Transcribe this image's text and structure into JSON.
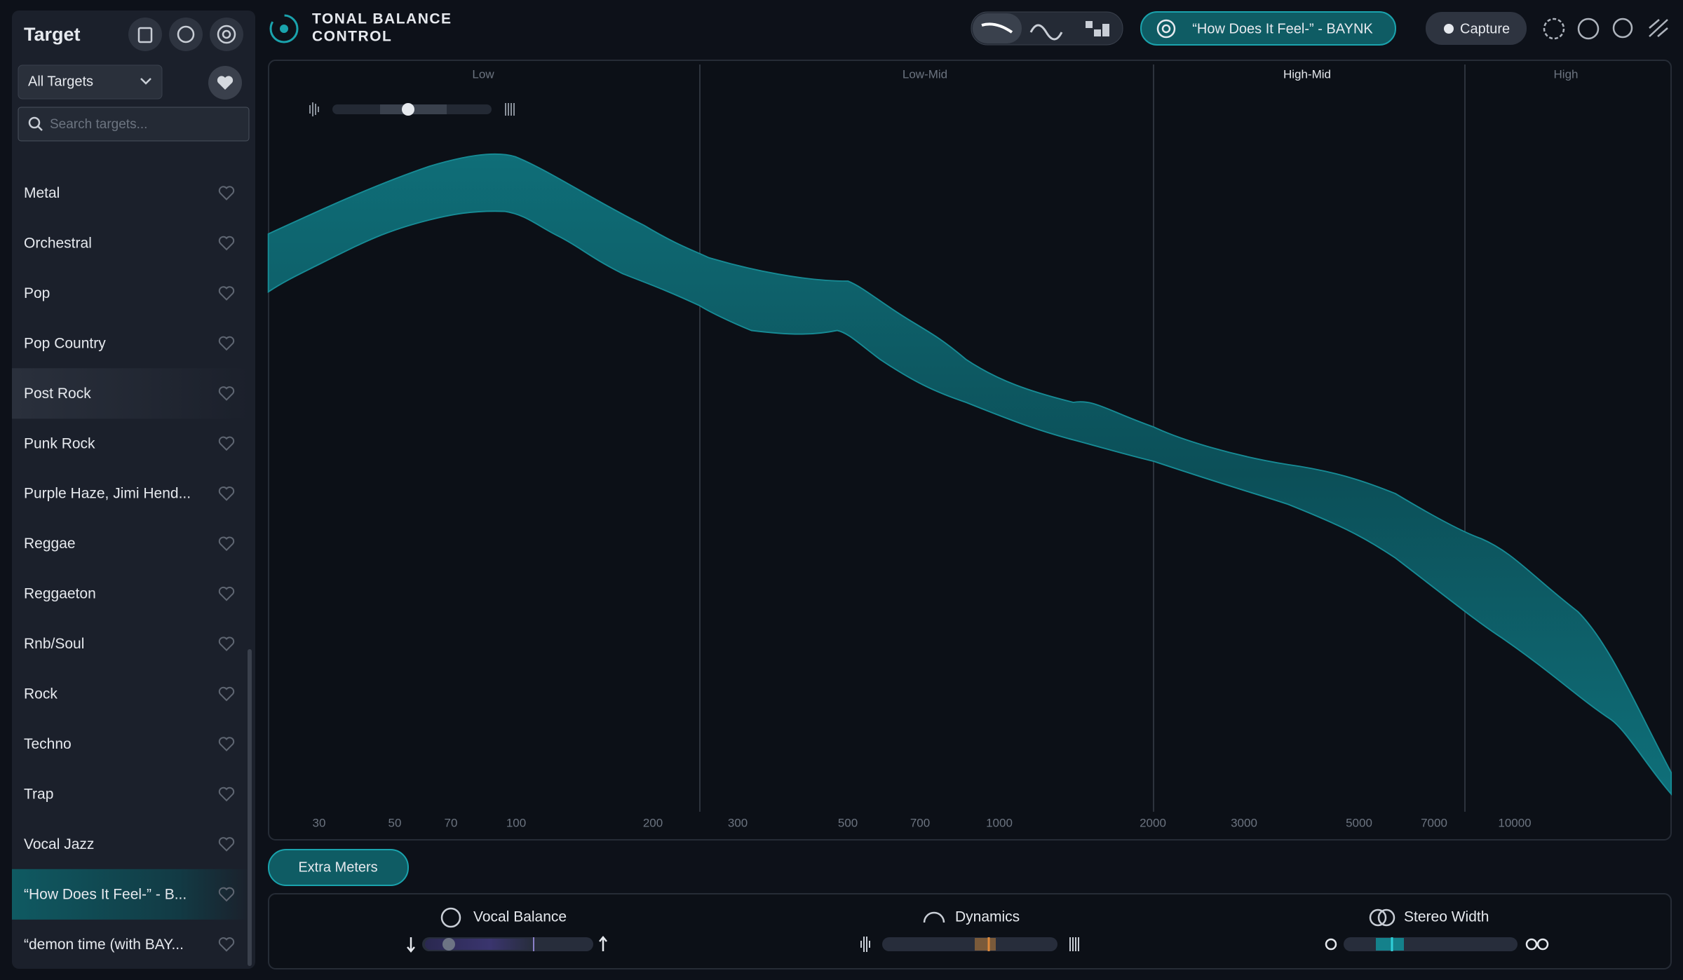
{
  "sidebar": {
    "title": "Target",
    "filter": "All Targets",
    "search_placeholder": "Search targets...",
    "items": [
      "Metal",
      "Orchestral",
      "Pop",
      "Pop Country",
      "Post Rock",
      "Punk Rock",
      "Purple Haze, Jimi Hend...",
      "Reggae",
      "Reggaeton",
      "Rnb/Soul",
      "Rock",
      "Techno",
      "Trap",
      "Vocal Jazz",
      "“How Does It Feel-” - B...",
      "“demon time (with BAY..."
    ]
  },
  "header": {
    "title_line1": "TONAL BALANCE",
    "title_line2": "CONTROL",
    "reference": "“How Does It Feel-” - BAYNK",
    "capture": "Capture"
  },
  "graph": {
    "bands": [
      "Low",
      "Low-Mid",
      "High-Mid",
      "High"
    ],
    "frequencies": [
      "30",
      "50",
      "70",
      "100",
      "200",
      "300",
      "500",
      "700",
      "1000",
      "2000",
      "3000",
      "5000",
      "7000",
      "10000"
    ]
  },
  "extra_meters": "Extra Meters",
  "meters": [
    "Vocal Balance",
    "Dynamics",
    "Stereo Width"
  ]
}
